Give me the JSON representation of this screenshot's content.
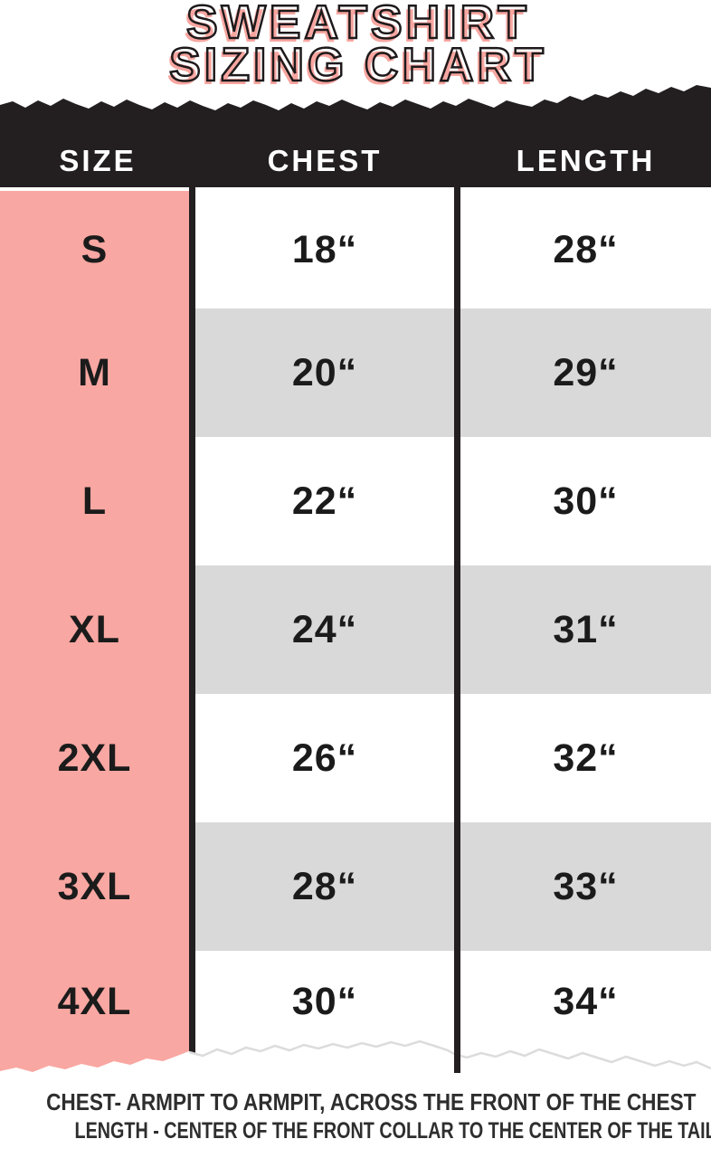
{
  "title": {
    "line1": "SWEATSHIRT",
    "line2": "SIZING CHART"
  },
  "table": {
    "headers": [
      "SIZE",
      "CHEST",
      "LENGTH"
    ],
    "rows": [
      {
        "size": "S",
        "chest": "18“",
        "length": "28“"
      },
      {
        "size": "M",
        "chest": "20“",
        "length": "29“"
      },
      {
        "size": "L",
        "chest": "22“",
        "length": "30“"
      },
      {
        "size": "XL",
        "chest": "24“",
        "length": "31“"
      },
      {
        "size": "2XL",
        "chest": "26“",
        "length": "32“"
      },
      {
        "size": "3XL",
        "chest": "28“",
        "length": "33“"
      },
      {
        "size": "4XL",
        "chest": "30“",
        "length": "34“"
      }
    ]
  },
  "footer": {
    "line1": "CHEST- ARMPIT TO ARMPIT, ACROSS THE FRONT OF THE CHEST",
    "line2": "LENGTH - CENTER OF THE FRONT COLLAR TO THE CENTER OF THE TAIL"
  },
  "colors": {
    "title_pink": "#f8a6a1",
    "outline": "#1e1a1b",
    "black": "#231f20",
    "pink": "#f9a7a2",
    "gray": "#d9d9d9",
    "row_text": "#1b1b1b",
    "header_text": "#ffffff",
    "footer_text": "#2e2e2e"
  }
}
